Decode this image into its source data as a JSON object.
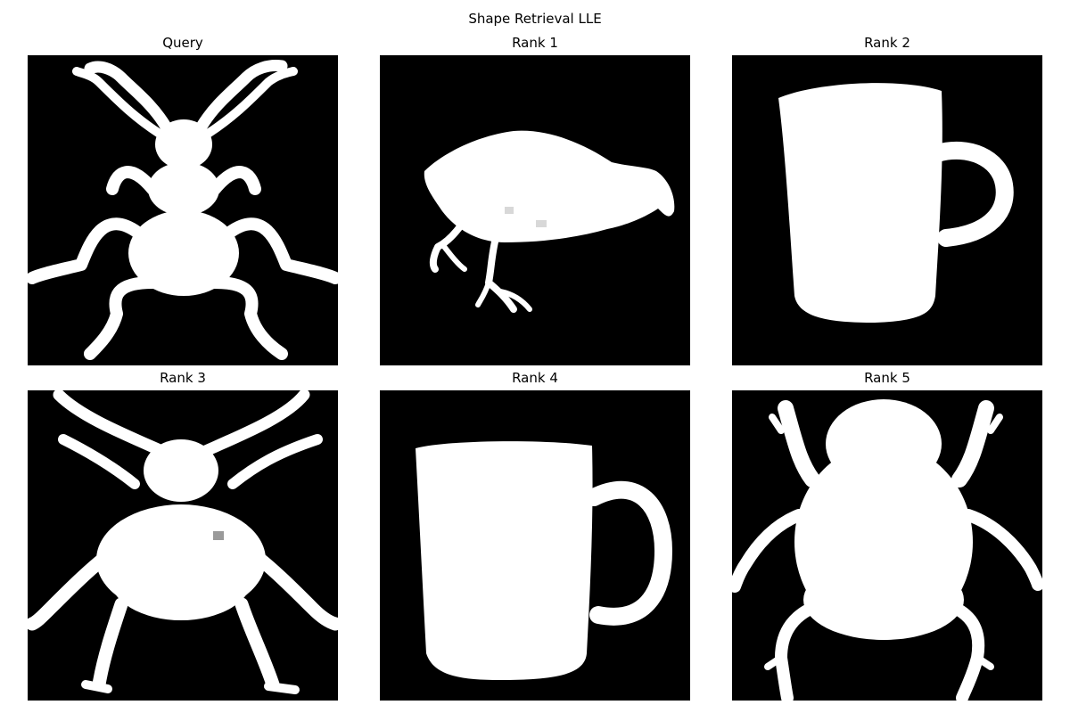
{
  "figure": {
    "title": "Shape Retrieval LLE",
    "background": "#ffffff",
    "tile_background": "#000000",
    "shape_color": "#ffffff"
  },
  "panels": [
    {
      "title": "Query",
      "shape": "beetle-silhouette"
    },
    {
      "title": "Rank 1",
      "shape": "bird-silhouette"
    },
    {
      "title": "Rank 2",
      "shape": "mug-silhouette"
    },
    {
      "title": "Rank 3",
      "shape": "beetle-silhouette"
    },
    {
      "title": "Rank 4",
      "shape": "mug-silhouette"
    },
    {
      "title": "Rank 5",
      "shape": "beetle-silhouette"
    }
  ]
}
